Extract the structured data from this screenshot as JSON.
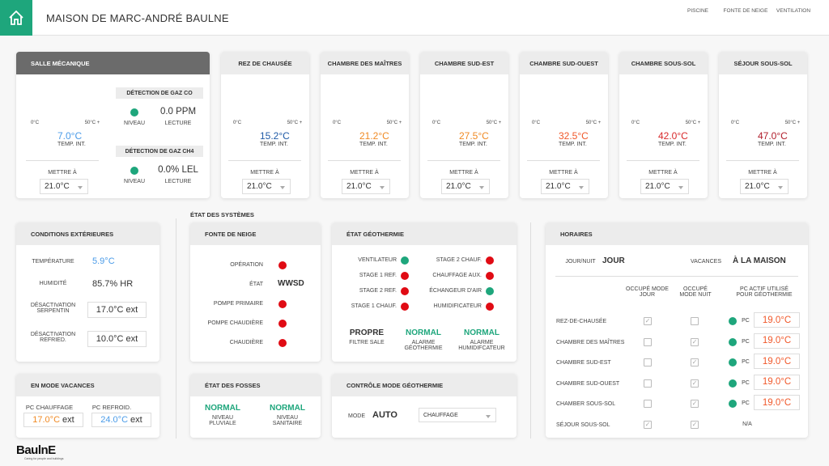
{
  "header": {
    "title": "MAISON DE MARC-ANDRÉ BAULNE",
    "nav": [
      {
        "label": "PISCINE",
        "icon": "pool-ladder-icon"
      },
      {
        "label": "FONTE DE NEIGE",
        "icon": "thermometer-plus-icon"
      },
      {
        "label": "VENTILATION",
        "icon": "fan-icon"
      }
    ]
  },
  "colors": {
    "accent": "#1ea67c",
    "light_blue": "#4a9be8",
    "dark_blue": "#1f5aa6",
    "orange": "#f08a24",
    "orange_red": "#f0582a",
    "red": "#d8282a",
    "dark_red": "#b01c2a",
    "status_ok": "#1ea67c",
    "status_off": "#e00b14"
  },
  "gauge": {
    "min_label": "0°C",
    "max_label": "50°C +",
    "min": 0,
    "max": 50,
    "temp_label": "TEMP. INT.",
    "set_label": "METTRE À"
  },
  "mechanical": {
    "title": "SALLE MÉCANIQUE",
    "temp": "7.0°C",
    "temp_value": 7.0,
    "setpoint": "21.0°C",
    "co": {
      "title": "DÉTECTION DE GAZ CO",
      "level_label": "NIVEAU",
      "level": "ok",
      "reading": "0.0 PPM",
      "reading_label": "LECTURE"
    },
    "ch4": {
      "title": "DÉTECTION DE GAZ CH4",
      "level_label": "NIVEAU",
      "level": "ok",
      "reading": "0.0% LEL",
      "reading_label": "LECTURE"
    }
  },
  "rooms": [
    {
      "name": "REZ DE CHAUSÉE",
      "temp": "15.2°C",
      "value": 15.2,
      "color": "#1f5aa6",
      "setpoint": "21.0°C"
    },
    {
      "name": "CHAMBRE DES MAÎTRES",
      "temp": "21.2°C",
      "value": 21.2,
      "color": "#f08a24",
      "setpoint": "21.0°C"
    },
    {
      "name": "CHAMBRE SUD-EST",
      "temp": "27.5°C",
      "value": 27.5,
      "color": "#f08a24",
      "setpoint": "21.0°C"
    },
    {
      "name": "CHAMBRE SUD-OUEST",
      "temp": "32.5°C",
      "value": 32.5,
      "color": "#f0582a",
      "setpoint": "21.0°C"
    },
    {
      "name": "CHAMBRE SOUS-SOL",
      "temp": "42.0°C",
      "value": 42.0,
      "color": "#d8282a",
      "setpoint": "21.0°C"
    },
    {
      "name": "SÉJOUR SOUS-SOL",
      "temp": "47.0°C",
      "value": 47.0,
      "color": "#b01c2a",
      "setpoint": "21.0°C"
    }
  ],
  "outdoor": {
    "title": "CONDITIONS EXTÉRIEURES",
    "temp_label": "TEMPÉRATURE",
    "temp": "5.9°C",
    "hum_label": "HUMIDITÉ",
    "hum": "85.7% HR",
    "coil_label": "DÉSACTIVATION SERPENTIN",
    "coil": "17.0°C ext",
    "cool_label": "DÉSACTIVATION REFRIED.",
    "cool": "10.0°C ext"
  },
  "vacation": {
    "title": "EN MODE VACANCES",
    "heat_label": "PC CHAUFFAGE",
    "heat": "17.0°C",
    "cool_label": "PC REFROID.",
    "cool": "24.0°C",
    "unit": "ext"
  },
  "systems_title": "ÉTAT DES SYSTÈMES",
  "snow": {
    "title": "FONTE DE NEIGE",
    "rows": [
      {
        "label": "OPÉRATION",
        "status": "off"
      },
      {
        "label": "ÉTAT",
        "value": "WWSD"
      },
      {
        "label": "POMPE PRIMAIRE",
        "status": "off"
      },
      {
        "label": "POMPE CHAUDIÈRE",
        "status": "off"
      },
      {
        "label": "CHAUDIÈRE",
        "status": "off"
      }
    ]
  },
  "geo": {
    "title": "ÉTAT GÉOTHERMIE",
    "left": [
      {
        "label": "VENTILATEUR",
        "status": "ok"
      },
      {
        "label": "STAGE 1 REF.",
        "status": "off"
      },
      {
        "label": "STAGE 2 REF.",
        "status": "off"
      },
      {
        "label": "STAGE 1 CHAUF.",
        "status": "off"
      }
    ],
    "right": [
      {
        "label": "STAGE 2 CHAUF.",
        "status": "off"
      },
      {
        "label": "CHAUFFAGE AUX.",
        "status": "off"
      },
      {
        "label": "ÉCHANGEUR D'AIR",
        "status": "ok"
      },
      {
        "label": "HUMIDIFICATEUR",
        "status": "off"
      }
    ],
    "filter": {
      "value": "PROPRE",
      "label": "FILTRE SALE"
    },
    "alarm_geo": {
      "value": "NORMAL",
      "label": "ALARME GÉOTHERMIE"
    },
    "alarm_hum": {
      "value": "NORMAL",
      "label": "ALARME HUMIDIFCATEUR"
    }
  },
  "pits": {
    "title": "ÉTAT DES FOSSES",
    "rain": {
      "value": "NORMAL",
      "label": "NIVEAU PLUVIALE"
    },
    "sanitary": {
      "value": "NORMAL",
      "label": "NIVEAU SANITAIRE"
    }
  },
  "geoctl": {
    "title": "CONTRÔLE MODE GÉOTHERMIE",
    "mode_label": "MODE",
    "mode": "AUTO",
    "select": "CHAUFFAGE"
  },
  "schedule": {
    "title": "HORAIRES",
    "daynight_label": "JOUR/NUIT",
    "daynight": "JOUR",
    "vac_label": "VACANCES",
    "vac": "À LA MAISON",
    "col_day": "OCCUPÉ MODE JOUR",
    "col_night": "OCCUPÉ MODE NUIT",
    "col_pc": "PC ACTIF UTILISÉ POUR GÉOTHERMIE",
    "pc_label": "PC",
    "rows": [
      {
        "name": "REZ-DE-CHAUSÉE",
        "day": true,
        "night": false,
        "pc": "19.0°C"
      },
      {
        "name": "CHAMBRE DES MAÎTRES",
        "day": false,
        "night": true,
        "pc": "19.0°C"
      },
      {
        "name": "CHAMBRE SUD-EST",
        "day": false,
        "night": true,
        "pc": "19.0°C"
      },
      {
        "name": "CHAMBRE SUD-OUEST",
        "day": false,
        "night": true,
        "pc": "19.0°C"
      },
      {
        "name": "CHAMBER SOUS-SOL",
        "day": false,
        "night": true,
        "pc": "19.0°C"
      },
      {
        "name": "SÉJOUR SOUS-SOL",
        "day": true,
        "night": true,
        "pc_na": "N/A"
      }
    ]
  },
  "logo": {
    "text": "BaulnE",
    "tagline": "Caring for people and buildings"
  }
}
